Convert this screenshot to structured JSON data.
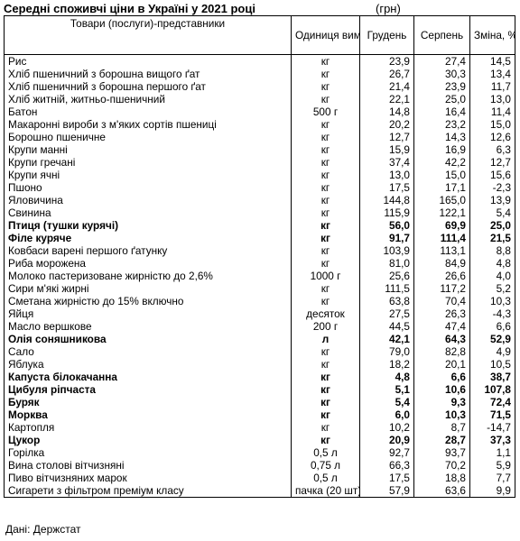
{
  "title": "Середні споживчі ціни в Україні у 2021 році",
  "currency": "(грн)",
  "headers": {
    "name": "Товари (послуги)-представники",
    "unit": "Одиниця вимірювання",
    "dec": "Грудень",
    "aug": "Серпень",
    "change": "Зміна, %"
  },
  "rows": [
    {
      "name": "Рис",
      "unit": "кг",
      "dec": "23,9",
      "aug": "27,4",
      "change": "14,5",
      "bold": false
    },
    {
      "name": "Хліб пшеничний з борошна вищого ґат",
      "unit": "кг",
      "dec": "26,7",
      "aug": "30,3",
      "change": "13,4",
      "bold": false
    },
    {
      "name": "Хліб пшеничний з борошна першого ґат",
      "unit": "кг",
      "dec": "21,4",
      "aug": "23,9",
      "change": "11,7",
      "bold": false
    },
    {
      "name": "Хліб житній, житньо-пшеничний",
      "unit": "кг",
      "dec": "22,1",
      "aug": "25,0",
      "change": "13,0",
      "bold": false
    },
    {
      "name": "Батон",
      "unit": "500 г",
      "dec": "14,8",
      "aug": "16,4",
      "change": "11,4",
      "bold": false
    },
    {
      "name": "Макаронні вироби з м'яких сортів пшениці",
      "unit": "кг",
      "dec": "20,2",
      "aug": "23,2",
      "change": "15,0",
      "bold": false
    },
    {
      "name": "Борошно пшеничне",
      "unit": "кг",
      "dec": "12,7",
      "aug": "14,3",
      "change": "12,6",
      "bold": false
    },
    {
      "name": "Крупи манні",
      "unit": "кг",
      "dec": "15,9",
      "aug": "16,9",
      "change": "6,3",
      "bold": false
    },
    {
      "name": "Крупи гречані",
      "unit": "кг",
      "dec": "37,4",
      "aug": "42,2",
      "change": "12,7",
      "bold": false
    },
    {
      "name": "Крупи ячні",
      "unit": "кг",
      "dec": "13,0",
      "aug": "15,0",
      "change": "15,6",
      "bold": false
    },
    {
      "name": "Пшоно",
      "unit": "кг",
      "dec": "17,5",
      "aug": "17,1",
      "change": "-2,3",
      "bold": false
    },
    {
      "name": "Яловичина",
      "unit": "кг",
      "dec": "144,8",
      "aug": "165,0",
      "change": "13,9",
      "bold": false
    },
    {
      "name": "Свинина",
      "unit": "кг",
      "dec": "115,9",
      "aug": "122,1",
      "change": "5,4",
      "bold": false
    },
    {
      "name": "Птиця (тушки курячі)",
      "unit": "кг",
      "dec": "56,0",
      "aug": "69,9",
      "change": "25,0",
      "bold": true
    },
    {
      "name": "Філе куряче",
      "unit": "кг",
      "dec": "91,7",
      "aug": "111,4",
      "change": "21,5",
      "bold": true
    },
    {
      "name": "Ковбаси варені першого ґатунку",
      "unit": "кг",
      "dec": "103,9",
      "aug": "113,1",
      "change": "8,8",
      "bold": false
    },
    {
      "name": "Риба морожена",
      "unit": "кг",
      "dec": "81,0",
      "aug": "84,9",
      "change": "4,8",
      "bold": false
    },
    {
      "name": "Молоко пастеризоване жирністю до 2,6%",
      "unit": "1000 г",
      "dec": "25,6",
      "aug": "26,6",
      "change": "4,0",
      "bold": false
    },
    {
      "name": "Сири м'які жирні",
      "unit": "кг",
      "dec": "111,5",
      "aug": "117,2",
      "change": "5,2",
      "bold": false
    },
    {
      "name": "Сметана жирністю до 15% включно",
      "unit": "кг",
      "dec": "63,8",
      "aug": "70,4",
      "change": "10,3",
      "bold": false
    },
    {
      "name": "Яйця",
      "unit": "десяток",
      "dec": "27,5",
      "aug": "26,3",
      "change": "-4,3",
      "bold": false
    },
    {
      "name": "Масло вершкове",
      "unit": "200 г",
      "dec": "44,5",
      "aug": "47,4",
      "change": "6,6",
      "bold": false
    },
    {
      "name": "Олія соняшникова",
      "unit": "л",
      "dec": "42,1",
      "aug": "64,3",
      "change": "52,9",
      "bold": true
    },
    {
      "name": "Сало",
      "unit": "кг",
      "dec": "79,0",
      "aug": "82,8",
      "change": "4,9",
      "bold": false
    },
    {
      "name": "Яблука",
      "unit": "кг",
      "dec": "18,2",
      "aug": "20,1",
      "change": "10,5",
      "bold": false
    },
    {
      "name": "Капуста білокачанна",
      "unit": "кг",
      "dec": "4,8",
      "aug": "6,6",
      "change": "38,7",
      "bold": true
    },
    {
      "name": "Цибуля ріпчаста",
      "unit": "кг",
      "dec": "5,1",
      "aug": "10,6",
      "change": "107,8",
      "bold": true
    },
    {
      "name": "Буряк",
      "unit": "кг",
      "dec": "5,4",
      "aug": "9,3",
      "change": "72,4",
      "bold": true
    },
    {
      "name": "Морква",
      "unit": "кг",
      "dec": "6,0",
      "aug": "10,3",
      "change": "71,5",
      "bold": true
    },
    {
      "name": "Картопля",
      "unit": "кг",
      "dec": "10,2",
      "aug": "8,7",
      "change": "-14,7",
      "bold": false
    },
    {
      "name": "Цукор",
      "unit": "кг",
      "dec": "20,9",
      "aug": "28,7",
      "change": "37,3",
      "bold": true
    },
    {
      "name": "Горілка",
      "unit": "0,5 л",
      "dec": "92,7",
      "aug": "93,7",
      "change": "1,1",
      "bold": false
    },
    {
      "name": "Вина столові вітчизняні",
      "unit": "0,75 л",
      "dec": "66,3",
      "aug": "70,2",
      "change": "5,9",
      "bold": false
    },
    {
      "name": "Пиво вітчизняних марок",
      "unit": "0,5 л",
      "dec": "17,5",
      "aug": "18,8",
      "change": "7,7",
      "bold": false
    },
    {
      "name": "Сигарети з фільтром преміум класу",
      "unit": "пачка (20 шт)",
      "dec": "57,9",
      "aug": "63,6",
      "change": "9,9",
      "bold": false
    }
  ],
  "source": "Дані: Держстат"
}
